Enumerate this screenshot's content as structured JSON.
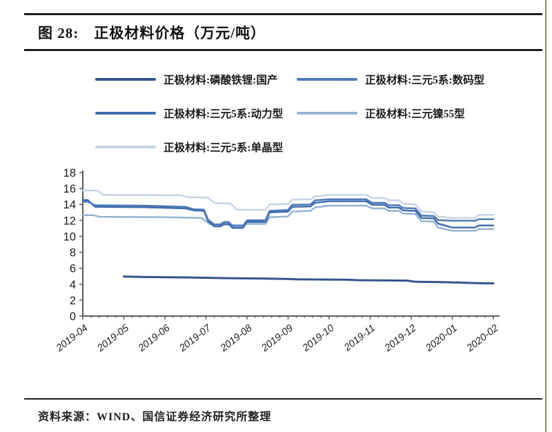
{
  "figure": {
    "number_label": "图 28:",
    "title_text": "正极材料价格（万元/吨）",
    "source": "资料来源：WIND、国信证券经济研究所整理"
  },
  "chart_data": {
    "type": "line",
    "title": "正极材料价格（万元/吨）",
    "unit": "万元/吨",
    "legend_position": "top",
    "grid": false,
    "x_axis": {
      "labels": [
        "2019-04",
        "2019-05",
        "2019-06",
        "2019-07",
        "2019-08",
        "2019-09",
        "2019-10",
        "2019-11",
        "2019-12",
        "2020-01",
        "2020-02"
      ],
      "range": [
        0,
        10
      ]
    },
    "y_axis": {
      "min": 0,
      "max": 18,
      "step": 2
    },
    "series": [
      {
        "name": "正极材料:磷酸铁锂:国产",
        "color": "#33548C",
        "width": 3,
        "points": [
          [
            1,
            4.95
          ],
          [
            1.5,
            4.9
          ],
          [
            2.5,
            4.85
          ],
          [
            3,
            4.8
          ],
          [
            3.5,
            4.75
          ],
          [
            4.5,
            4.7
          ],
          [
            5,
            4.65
          ],
          [
            5.2,
            4.6
          ],
          [
            6.5,
            4.55
          ],
          [
            6.7,
            4.5
          ],
          [
            7.9,
            4.45
          ],
          [
            8.1,
            4.3
          ],
          [
            8.8,
            4.25
          ],
          [
            9.2,
            4.2
          ],
          [
            9.8,
            4.1
          ],
          [
            10,
            4.1
          ]
        ]
      },
      {
        "name": "正极材料:三元5系:数码型",
        "color": "#4E7AB5",
        "width": 2.5,
        "points": [
          [
            0,
            14.35
          ],
          [
            0.12,
            14.35
          ],
          [
            0.3,
            13.9
          ],
          [
            1.5,
            13.85
          ],
          [
            2.5,
            13.7
          ],
          [
            2.7,
            13.4
          ],
          [
            2.95,
            13.35
          ],
          [
            3.05,
            12.1
          ],
          [
            3.2,
            11.5
          ],
          [
            3.35,
            11.5
          ],
          [
            3.45,
            11.8
          ],
          [
            3.55,
            11.8
          ],
          [
            3.65,
            11.3
          ],
          [
            3.9,
            11.3
          ],
          [
            4.0,
            12.0
          ],
          [
            4.45,
            12.0
          ],
          [
            4.55,
            13.2
          ],
          [
            5.0,
            13.3
          ],
          [
            5.1,
            13.95
          ],
          [
            5.55,
            14.0
          ],
          [
            5.65,
            14.5
          ],
          [
            6.0,
            14.65
          ],
          [
            6.9,
            14.65
          ],
          [
            7.05,
            14.2
          ],
          [
            7.35,
            14.2
          ],
          [
            7.45,
            13.9
          ],
          [
            7.7,
            13.9
          ],
          [
            7.8,
            13.55
          ],
          [
            8.1,
            13.5
          ],
          [
            8.25,
            12.6
          ],
          [
            8.55,
            12.55
          ],
          [
            8.65,
            12.05
          ],
          [
            9.0,
            11.95
          ],
          [
            9.55,
            11.95
          ],
          [
            9.65,
            12.15
          ],
          [
            10,
            12.15
          ]
        ]
      },
      {
        "name": "正极材料:三元5系:动力型",
        "color": "#3E6CB0",
        "width": 2.5,
        "points": [
          [
            0,
            14.55
          ],
          [
            0.12,
            14.55
          ],
          [
            0.3,
            13.7
          ],
          [
            1.5,
            13.65
          ],
          [
            2.5,
            13.5
          ],
          [
            2.7,
            13.25
          ],
          [
            2.95,
            13.2
          ],
          [
            3.05,
            11.9
          ],
          [
            3.2,
            11.25
          ],
          [
            3.35,
            11.25
          ],
          [
            3.45,
            11.55
          ],
          [
            3.55,
            11.55
          ],
          [
            3.65,
            11.05
          ],
          [
            3.9,
            11.05
          ],
          [
            4.0,
            11.8
          ],
          [
            4.45,
            11.8
          ],
          [
            4.55,
            13.0
          ],
          [
            5.0,
            13.1
          ],
          [
            5.1,
            13.7
          ],
          [
            5.55,
            13.75
          ],
          [
            5.65,
            14.2
          ],
          [
            6.0,
            14.4
          ],
          [
            6.9,
            14.4
          ],
          [
            7.05,
            13.95
          ],
          [
            7.35,
            13.95
          ],
          [
            7.45,
            13.6
          ],
          [
            7.7,
            13.6
          ],
          [
            7.8,
            13.25
          ],
          [
            8.1,
            13.2
          ],
          [
            8.25,
            12.3
          ],
          [
            8.55,
            12.25
          ],
          [
            8.65,
            11.6
          ],
          [
            9.0,
            11.1
          ],
          [
            9.55,
            11.1
          ],
          [
            9.65,
            11.35
          ],
          [
            10,
            11.35
          ]
        ]
      },
      {
        "name": "正极材料:三元镍55型",
        "color": "#95B3D7",
        "width": 2.5,
        "points": [
          [
            0,
            12.65
          ],
          [
            0.25,
            12.65
          ],
          [
            0.4,
            12.45
          ],
          [
            2.0,
            12.4
          ],
          [
            2.9,
            12.3
          ],
          [
            3.0,
            11.9
          ],
          [
            3.1,
            11.5
          ],
          [
            3.9,
            11.4
          ],
          [
            4.0,
            11.55
          ],
          [
            4.45,
            11.55
          ],
          [
            4.55,
            12.4
          ],
          [
            5.0,
            12.5
          ],
          [
            5.1,
            13.1
          ],
          [
            5.55,
            13.2
          ],
          [
            5.65,
            13.6
          ],
          [
            6.0,
            13.85
          ],
          [
            6.9,
            13.85
          ],
          [
            7.05,
            13.5
          ],
          [
            7.35,
            13.5
          ],
          [
            7.45,
            13.2
          ],
          [
            7.7,
            13.2
          ],
          [
            7.8,
            12.85
          ],
          [
            8.1,
            12.8
          ],
          [
            8.25,
            11.9
          ],
          [
            8.55,
            11.85
          ],
          [
            8.65,
            11.1
          ],
          [
            9.0,
            10.7
          ],
          [
            9.55,
            10.7
          ],
          [
            9.65,
            10.9
          ],
          [
            10,
            10.9
          ]
        ]
      },
      {
        "name": "正极材料:三元5系:单晶型",
        "color": "#C6D3E8",
        "width": 2.5,
        "points": [
          [
            0,
            15.75
          ],
          [
            0.35,
            15.75
          ],
          [
            0.5,
            15.2
          ],
          [
            2.4,
            15.15
          ],
          [
            2.55,
            14.9
          ],
          [
            3.05,
            14.85
          ],
          [
            3.2,
            14.2
          ],
          [
            3.6,
            14.1
          ],
          [
            3.75,
            13.35
          ],
          [
            4.45,
            13.3
          ],
          [
            4.55,
            14.0
          ],
          [
            5.0,
            14.05
          ],
          [
            5.1,
            14.6
          ],
          [
            5.55,
            14.65
          ],
          [
            5.65,
            15.0
          ],
          [
            6.0,
            15.2
          ],
          [
            6.9,
            15.2
          ],
          [
            7.05,
            14.8
          ],
          [
            7.35,
            14.8
          ],
          [
            7.45,
            14.5
          ],
          [
            7.7,
            14.5
          ],
          [
            7.8,
            14.1
          ],
          [
            8.1,
            14.0
          ],
          [
            8.25,
            13.1
          ],
          [
            8.55,
            13.0
          ],
          [
            8.65,
            12.5
          ],
          [
            9.0,
            12.3
          ],
          [
            9.55,
            12.3
          ],
          [
            9.65,
            12.7
          ],
          [
            10,
            12.7
          ]
        ]
      }
    ]
  }
}
